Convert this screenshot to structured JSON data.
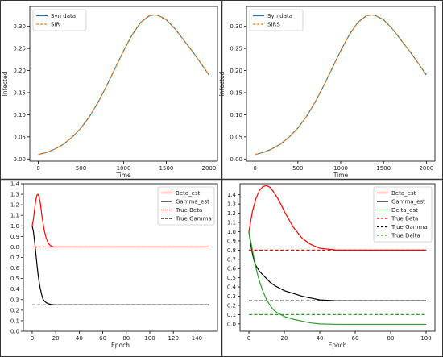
{
  "chart_data": [
    {
      "type": "line",
      "xlabel": "Time",
      "ylabel": "Infected",
      "xlim": [
        -100,
        2100
      ],
      "ylim": [
        -0.005,
        0.345
      ],
      "xticks": [
        0,
        500,
        1000,
        1500,
        2000
      ],
      "yticks": [
        0.0,
        0.05,
        0.1,
        0.15,
        0.2,
        0.25,
        0.3
      ],
      "ytick_labels": [
        "0.00",
        "0.05",
        "0.10",
        "0.15",
        "0.20",
        "0.25",
        "0.30"
      ],
      "legend": "top-left",
      "series": [
        {
          "name": "Syn data",
          "color": "#1f77b4",
          "style": "solid",
          "x": [
            0,
            100,
            200,
            300,
            400,
            500,
            600,
            700,
            800,
            900,
            1000,
            1100,
            1200,
            1300,
            1360,
            1400,
            1500,
            1600,
            1700,
            1800,
            1900,
            2000
          ],
          "y": [
            0.01,
            0.015,
            0.023,
            0.034,
            0.05,
            0.07,
            0.096,
            0.128,
            0.165,
            0.205,
            0.245,
            0.281,
            0.309,
            0.324,
            0.326,
            0.325,
            0.315,
            0.295,
            0.27,
            0.245,
            0.218,
            0.19
          ]
        },
        {
          "name": "SIR",
          "color": "#ff7f0e",
          "style": "dashed",
          "x": [
            0,
            100,
            200,
            300,
            400,
            500,
            600,
            700,
            800,
            900,
            1000,
            1100,
            1200,
            1300,
            1360,
            1400,
            1500,
            1600,
            1700,
            1800,
            1900,
            2000
          ],
          "y": [
            0.01,
            0.015,
            0.023,
            0.034,
            0.05,
            0.07,
            0.096,
            0.128,
            0.165,
            0.205,
            0.245,
            0.281,
            0.309,
            0.324,
            0.326,
            0.325,
            0.315,
            0.295,
            0.27,
            0.245,
            0.218,
            0.19
          ]
        }
      ]
    },
    {
      "type": "line",
      "xlabel": "Time",
      "ylabel": "Infected",
      "xlim": [
        -100,
        2100
      ],
      "ylim": [
        -0.005,
        0.345
      ],
      "xticks": [
        0,
        500,
        1000,
        1500,
        2000
      ],
      "yticks": [
        0.0,
        0.05,
        0.1,
        0.15,
        0.2,
        0.25,
        0.3
      ],
      "ytick_labels": [
        "0.00",
        "0.05",
        "0.10",
        "0.15",
        "0.20",
        "0.25",
        "0.30"
      ],
      "legend": "top-left",
      "series": [
        {
          "name": "Syn data",
          "color": "#1f77b4",
          "style": "solid",
          "x": [
            0,
            100,
            200,
            300,
            400,
            500,
            600,
            700,
            800,
            900,
            1000,
            1100,
            1200,
            1300,
            1360,
            1400,
            1500,
            1600,
            1700,
            1800,
            1900,
            2000
          ],
          "y": [
            0.01,
            0.015,
            0.023,
            0.034,
            0.05,
            0.07,
            0.096,
            0.128,
            0.165,
            0.205,
            0.245,
            0.281,
            0.309,
            0.324,
            0.326,
            0.325,
            0.315,
            0.295,
            0.27,
            0.245,
            0.218,
            0.19
          ]
        },
        {
          "name": "SIRS",
          "color": "#ff7f0e",
          "style": "dashed",
          "x": [
            0,
            100,
            200,
            300,
            400,
            500,
            600,
            700,
            800,
            900,
            1000,
            1100,
            1200,
            1300,
            1360,
            1400,
            1500,
            1600,
            1700,
            1800,
            1900,
            2000
          ],
          "y": [
            0.01,
            0.015,
            0.023,
            0.034,
            0.05,
            0.07,
            0.096,
            0.128,
            0.165,
            0.205,
            0.245,
            0.281,
            0.309,
            0.324,
            0.326,
            0.325,
            0.315,
            0.295,
            0.27,
            0.245,
            0.218,
            0.19
          ]
        }
      ]
    },
    {
      "type": "line",
      "xlabel": "Epoch",
      "ylabel": "",
      "xlim": [
        -7.5,
        157.5
      ],
      "ylim": [
        0.0,
        1.4
      ],
      "xticks": [
        0,
        20,
        40,
        60,
        80,
        100,
        120,
        140
      ],
      "yticks": [
        0.0,
        0.1,
        0.2,
        0.3,
        0.4,
        0.5,
        0.6,
        0.7,
        0.8,
        0.9,
        1.0,
        1.1,
        1.2,
        1.3,
        1.4
      ],
      "ytick_labels": [
        "0.0",
        "0.1",
        "0.2",
        "0.3",
        "0.4",
        "0.5",
        "0.6",
        "0.7",
        "0.8",
        "0.9",
        "1.0",
        "1.1",
        "1.2",
        "1.3",
        "1.4"
      ],
      "legend": "top-right",
      "series": [
        {
          "name": "Beta_est",
          "color": "#ff0000",
          "style": "solid",
          "x": [
            0,
            1,
            2,
            3,
            4,
            5,
            6,
            7,
            8,
            10,
            12,
            14,
            16,
            18,
            20,
            25,
            30,
            50,
            100,
            150
          ],
          "y": [
            1.0,
            1.06,
            1.15,
            1.24,
            1.29,
            1.3,
            1.27,
            1.21,
            1.12,
            0.97,
            0.88,
            0.83,
            0.81,
            0.8,
            0.8,
            0.8,
            0.8,
            0.8,
            0.8,
            0.8
          ]
        },
        {
          "name": "Gamma_est",
          "color": "#000000",
          "style": "solid",
          "x": [
            0,
            1,
            2,
            3,
            4,
            5,
            6,
            7,
            8,
            9,
            10,
            12,
            14,
            16,
            18,
            20,
            25,
            30,
            50,
            100,
            150
          ],
          "y": [
            1.0,
            0.95,
            0.86,
            0.75,
            0.64,
            0.54,
            0.46,
            0.4,
            0.35,
            0.31,
            0.29,
            0.27,
            0.26,
            0.255,
            0.252,
            0.25,
            0.25,
            0.25,
            0.25,
            0.25,
            0.25
          ]
        },
        {
          "name": "True Beta",
          "color": "#ff0000",
          "style": "dashed",
          "x": [
            0,
            150
          ],
          "y": [
            0.8,
            0.8
          ]
        },
        {
          "name": "True Gamma",
          "color": "#000000",
          "style": "dashed",
          "x": [
            0,
            150
          ],
          "y": [
            0.25,
            0.25
          ]
        }
      ]
    },
    {
      "type": "line",
      "xlabel": "Epoch",
      "ylabel": "",
      "xlim": [
        -5,
        105
      ],
      "ylim": [
        -0.08,
        1.52
      ],
      "xticks": [
        0,
        20,
        40,
        60,
        80,
        100
      ],
      "yticks": [
        0.0,
        0.1,
        0.2,
        0.3,
        0.4,
        0.5,
        0.6,
        0.7,
        0.8,
        0.9,
        1.0,
        1.1,
        1.2,
        1.3,
        1.4
      ],
      "ytick_labels": [
        "0.0",
        "0.1",
        "0.2",
        "0.3",
        "0.4",
        "0.5",
        "0.6",
        "0.7",
        "0.8",
        "0.9",
        "1.0",
        "1.1",
        "1.2",
        "1.3",
        "1.4"
      ],
      "legend": "top-right",
      "series": [
        {
          "name": "Beta_est",
          "color": "#ff0000",
          "style": "solid",
          "x": [
            0,
            2,
            4,
            6,
            8,
            10,
            12,
            14,
            16,
            18,
            20,
            25,
            30,
            35,
            40,
            45,
            50,
            60,
            80,
            100
          ],
          "y": [
            1.0,
            1.22,
            1.36,
            1.45,
            1.49,
            1.5,
            1.48,
            1.43,
            1.37,
            1.3,
            1.22,
            1.05,
            0.93,
            0.86,
            0.82,
            0.81,
            0.8,
            0.8,
            0.8,
            0.8
          ]
        },
        {
          "name": "Gamma_est",
          "color": "#000000",
          "style": "solid",
          "x": [
            0,
            1,
            2,
            3,
            4,
            5,
            6,
            8,
            10,
            12,
            15,
            18,
            20,
            25,
            30,
            35,
            40,
            45,
            50,
            60,
            80,
            100
          ],
          "y": [
            1.0,
            0.87,
            0.76,
            0.68,
            0.63,
            0.6,
            0.57,
            0.53,
            0.49,
            0.45,
            0.41,
            0.38,
            0.36,
            0.33,
            0.3,
            0.28,
            0.26,
            0.255,
            0.25,
            0.25,
            0.25,
            0.25
          ]
        },
        {
          "name": "Delta_est",
          "color": "#2ca02c",
          "style": "solid",
          "x": [
            0,
            1,
            2,
            3,
            4,
            5,
            6,
            8,
            10,
            12,
            14,
            16,
            18,
            20,
            25,
            30,
            35,
            40,
            50,
            60,
            80,
            100
          ],
          "y": [
            1.0,
            0.9,
            0.8,
            0.7,
            0.61,
            0.53,
            0.46,
            0.35,
            0.26,
            0.2,
            0.15,
            0.12,
            0.1,
            0.08,
            0.05,
            0.03,
            0.01,
            0.0,
            -0.005,
            -0.005,
            -0.005,
            -0.005
          ]
        },
        {
          "name": "True Beta",
          "color": "#ff0000",
          "style": "dashed",
          "x": [
            0,
            100
          ],
          "y": [
            0.8,
            0.8
          ]
        },
        {
          "name": "True Gamma",
          "color": "#000000",
          "style": "dashed",
          "x": [
            0,
            100
          ],
          "y": [
            0.25,
            0.25
          ]
        },
        {
          "name": "True Delta",
          "color": "#2ca02c",
          "style": "dashed",
          "x": [
            0,
            100
          ],
          "y": [
            0.1,
            0.1
          ]
        }
      ]
    }
  ]
}
